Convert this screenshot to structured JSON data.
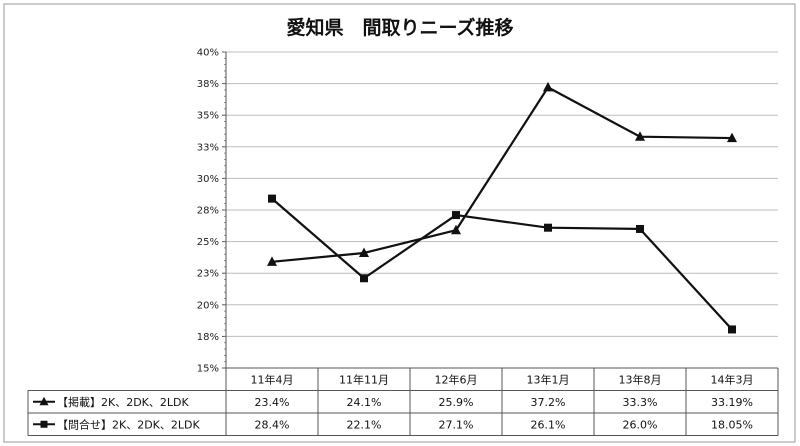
{
  "chart_data": {
    "type": "line",
    "title": "愛知県　間取りニーズ推移",
    "categories": [
      "11年4月",
      "11年11月",
      "12年6月",
      "13年1月",
      "13年8月",
      "14年3月"
    ],
    "yticks": [
      "40%",
      "38%",
      "35%",
      "33%",
      "30%",
      "28%",
      "25%",
      "23%",
      "20%",
      "18%",
      "15%"
    ],
    "ylim": [
      15,
      40
    ],
    "grid": true,
    "legend_placement": "data-table-left",
    "series": [
      {
        "name": "【掲載】2K、2DK、2LDK",
        "marker": "triangle",
        "color": "#111111",
        "values": [
          23.4,
          24.1,
          25.9,
          37.2,
          33.3,
          33.19
        ],
        "labels": [
          "23.4%",
          "24.1%",
          "25.9%",
          "37.2%",
          "33.3%",
          "33.19%"
        ]
      },
      {
        "name": "【問合せ】2K、2DK、2LDK",
        "marker": "square",
        "color": "#111111",
        "values": [
          28.4,
          22.1,
          27.1,
          26.1,
          26.0,
          18.05
        ],
        "labels": [
          "28.4%",
          "22.1%",
          "27.1%",
          "26.1%",
          "26.0%",
          "18.05%"
        ]
      }
    ]
  }
}
